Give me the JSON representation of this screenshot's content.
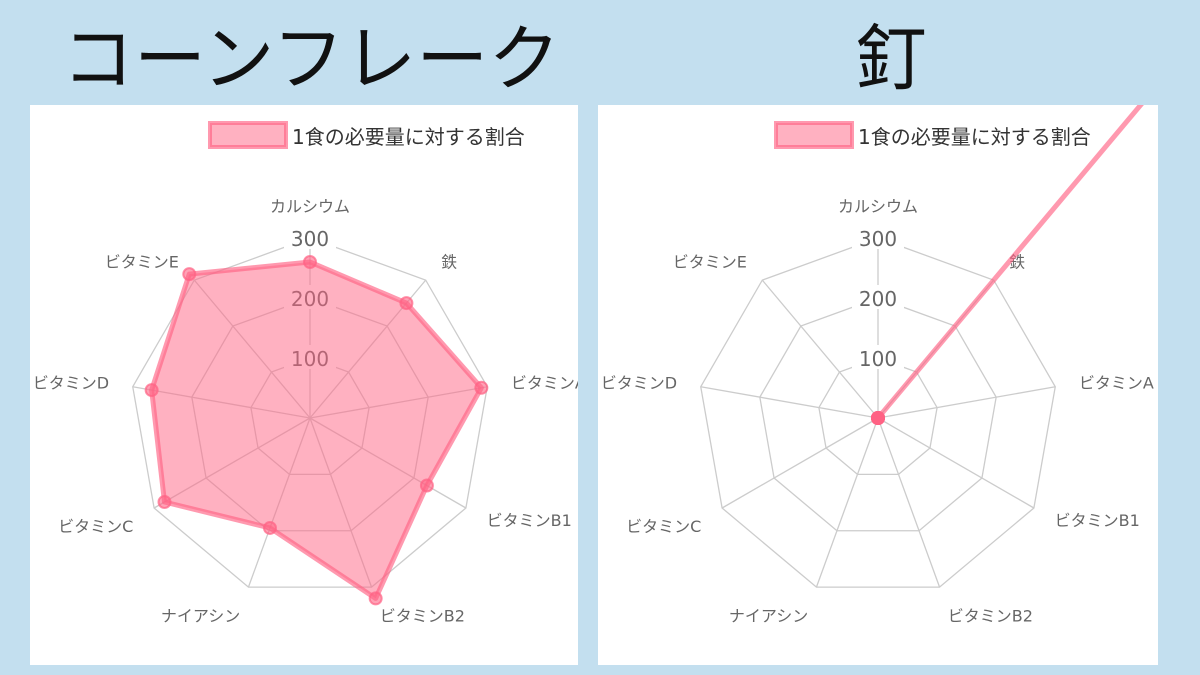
{
  "titles": [
    "コーンフレーク",
    "釘"
  ],
  "chart_data": [
    {
      "type": "radar",
      "title": "コーンフレーク",
      "categories": [
        "カルシウム",
        "鉄",
        "ビタミンA",
        "ビタミンB1",
        "ビタミンB2",
        "ナイアシン",
        "ビタミンC",
        "ビタミンD",
        "ビタミンE"
      ],
      "series": [
        {
          "name": "1食の必要量に対する割合",
          "values": [
            260,
            250,
            290,
            225,
            320,
            195,
            280,
            268,
            313
          ]
        }
      ],
      "ticks": [
        "100",
        "200",
        "300"
      ],
      "rlim": [
        0,
        300
      ],
      "legend": "top-right",
      "colors": {
        "fill": "#ff6384",
        "grid": "#cccccc"
      }
    },
    {
      "type": "radar",
      "title": "釘",
      "categories": [
        "カルシウム",
        "鉄",
        "ビタミンA",
        "ビタミンB1",
        "ビタミンB2",
        "ナイアシン",
        "ビタミンC",
        "ビタミンD",
        "ビタミンE"
      ],
      "series": [
        {
          "name": "1食の必要量に対する割合",
          "values": [
            0,
            1000,
            0,
            0,
            0,
            0,
            0,
            0,
            0
          ]
        }
      ],
      "ticks": [
        "100",
        "200",
        "300"
      ],
      "rlim": [
        0,
        300
      ],
      "legend": "top-right",
      "colors": {
        "fill": "#ff6384",
        "grid": "#cccccc"
      }
    }
  ]
}
